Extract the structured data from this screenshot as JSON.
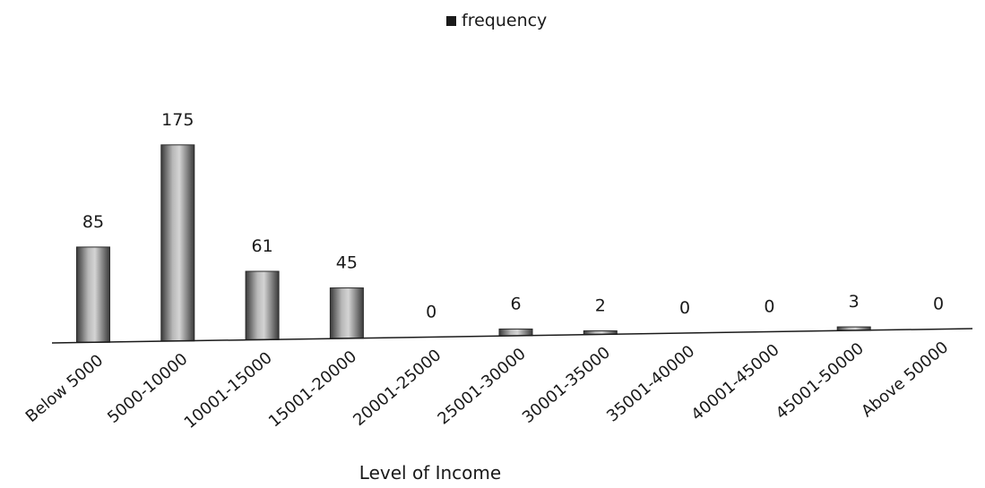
{
  "chart_data": {
    "type": "bar",
    "title": "",
    "xlabel": "Level of Income",
    "ylabel": "",
    "categories": [
      "Below 5000",
      "5000-10000",
      "10001-15000",
      "15001-20000",
      "20001-25000",
      "25001-30000",
      "30001-35000",
      "35001-40000",
      "40001-45000",
      "45001-50000",
      "Above 50000"
    ],
    "series": [
      {
        "name": "frequency",
        "values": [
          85,
          175,
          61,
          45,
          0,
          6,
          2,
          0,
          0,
          3,
          0
        ]
      }
    ],
    "data_labels": [
      "85",
      "175",
      "61",
      "45",
      "0",
      "6",
      "2",
      "0",
      "0",
      "3",
      "0"
    ],
    "ylim": [
      0,
      175
    ],
    "legend": "top-center",
    "grid": false
  }
}
